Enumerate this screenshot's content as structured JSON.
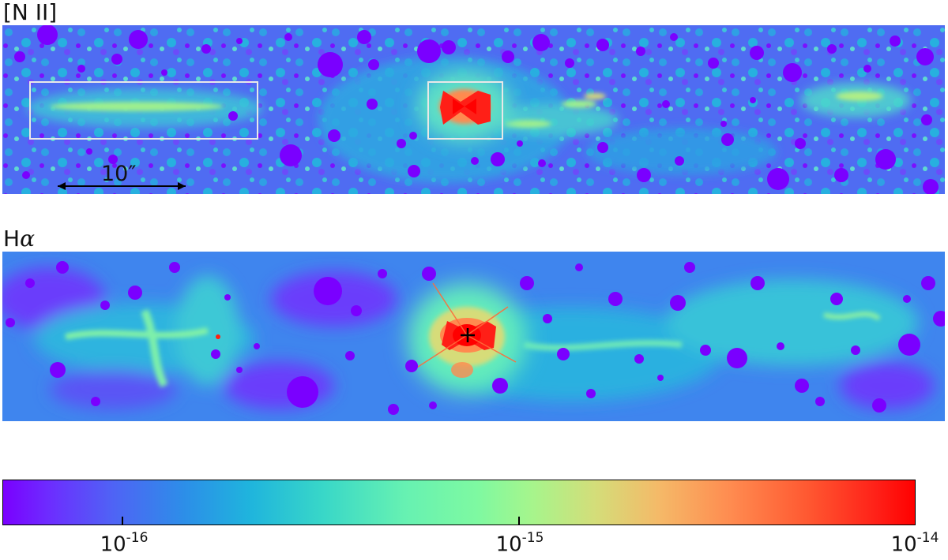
{
  "panels": [
    {
      "label": "[N II]",
      "scale_label": "10″"
    },
    {
      "label": "H",
      "label_symbol": "α"
    }
  ],
  "colorbar": {
    "colormap": "rainbow",
    "scale": "log",
    "range": [
      "1e-16.3",
      "1e-14"
    ],
    "ticks": [
      {
        "base": "10",
        "exp": "-16"
      },
      {
        "base": "10",
        "exp": "-15"
      },
      {
        "base": "10",
        "exp": "-14"
      }
    ]
  },
  "colors": {
    "low": "#7a00ff",
    "mid": "#66f1b2",
    "high": "#ff0000",
    "box": "#e8e8e8"
  }
}
